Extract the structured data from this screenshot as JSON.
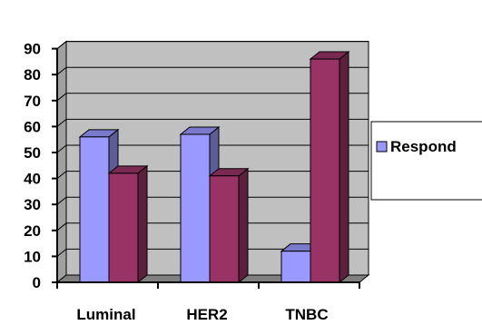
{
  "chart_data": {
    "type": "bar",
    "style": "3d-clustered",
    "categories": [
      "Luminal",
      "HER2",
      "TNBC"
    ],
    "series": [
      {
        "name": "Respond",
        "values": [
          56,
          57,
          12
        ],
        "color": "#9999ff"
      },
      {
        "name": "",
        "values": [
          42,
          41,
          86
        ],
        "color": "#993366"
      }
    ],
    "ylim": [
      0,
      90
    ],
    "yticks": [
      0,
      10,
      20,
      30,
      40,
      50,
      60,
      70,
      80,
      90
    ],
    "grid": true,
    "legend": "right",
    "wall_color": "#c0c0c0",
    "floor_color": "#808080"
  }
}
